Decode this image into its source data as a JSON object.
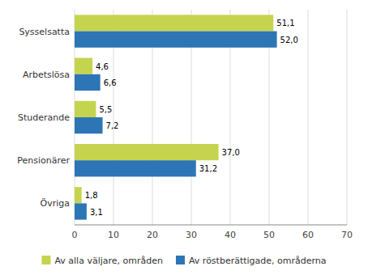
{
  "chart_data": {
    "type": "bar",
    "orientation": "horizontal",
    "categories": [
      "Sysselsatta",
      "Arbetslösa",
      "Studerande",
      "Pensionärer",
      "Övriga"
    ],
    "series": [
      {
        "name": "Av alla väljare, områden",
        "color": "#C5D44E",
        "values": [
          51.1,
          4.6,
          5.5,
          37.0,
          1.8
        ],
        "value_labels": [
          "51,1",
          "4,6",
          "5,5",
          "37,0",
          "1,8"
        ]
      },
      {
        "name": "Av röstberättigade, områderna",
        "color": "#2E75B6",
        "values": [
          52.0,
          6.6,
          7.2,
          31.2,
          3.1
        ],
        "value_labels": [
          "52,0",
          "6,6",
          "7,2",
          "31,2",
          "3,1"
        ]
      }
    ],
    "xlim": [
      0,
      70
    ],
    "xticks": [
      0,
      10,
      20,
      30,
      40,
      50,
      60,
      70
    ],
    "grid": true,
    "legend": "bottom",
    "data_labels": true
  }
}
